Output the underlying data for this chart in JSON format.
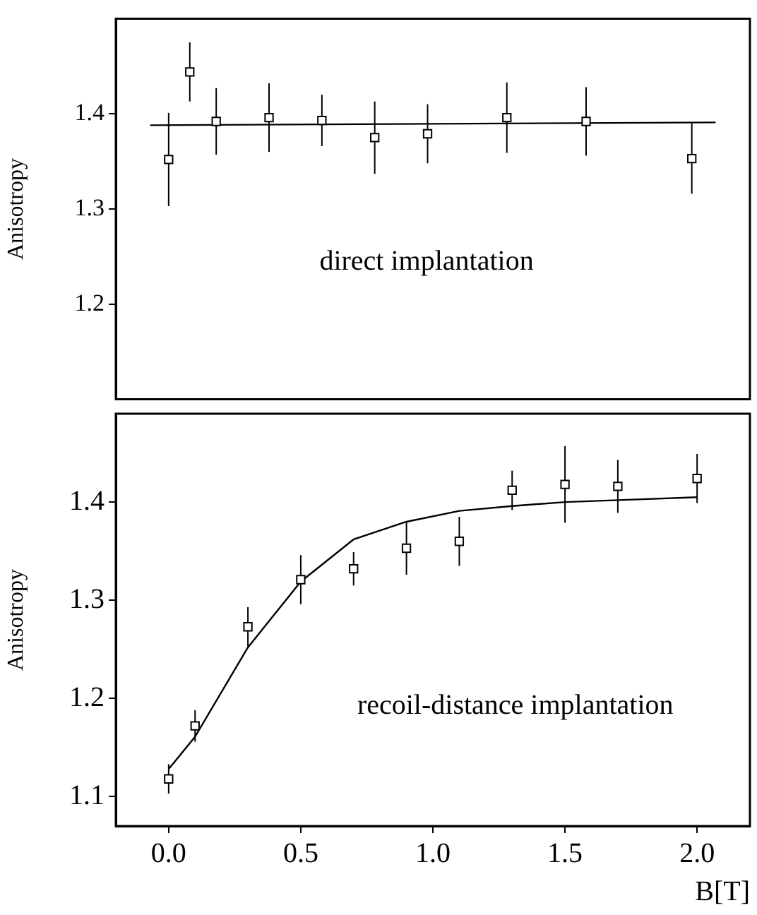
{
  "chart_data": [
    {
      "type": "scatter",
      "ylabel": "Anisotropy",
      "xlim": [
        -0.2,
        2.2
      ],
      "ylim": [
        1.1,
        1.5
      ],
      "yticks": [
        1.2,
        1.3,
        1.4
      ],
      "tick_labels": "y",
      "marker": "square",
      "annotations": [
        "direct implantation"
      ],
      "series": [
        {
          "color": "#000000",
          "x": [
            0.0,
            0.08,
            0.18,
            0.38,
            0.58,
            0.78,
            0.98,
            1.28,
            1.58,
            1.98
          ],
          "values": [
            1.352,
            1.444,
            1.392,
            1.396,
            1.393,
            1.375,
            1.379,
            1.396,
            1.392,
            1.353
          ],
          "errors": [
            0.049,
            0.031,
            0.035,
            0.036,
            0.027,
            0.038,
            0.031,
            0.037,
            0.036,
            0.037
          ]
        },
        {
          "type": "line",
          "color": "#000000",
          "marker": "none",
          "x": [
            -0.07,
            2.07
          ],
          "values": [
            1.388,
            1.391
          ]
        }
      ]
    },
    {
      "type": "scatter",
      "ylabel": "Anisotropy",
      "xlabel": "B[T]",
      "xlim": [
        -0.2,
        2.2
      ],
      "xticks": [
        {
          "value": 0,
          "label": "0.0"
        },
        0.5,
        {
          "value": 1,
          "label": "1.0"
        },
        1.5,
        {
          "value": 2,
          "label": "2.0"
        }
      ],
      "ylim": [
        1.07,
        1.49
      ],
      "yticks": [
        1.1,
        1.2,
        1.3,
        1.4
      ],
      "marker": "square",
      "annotations": [
        "recoil-distance implantation"
      ],
      "series": [
        {
          "color": "#000000",
          "x": [
            0,
            0.1,
            0.3,
            0.5,
            0.7,
            0.9,
            1.1,
            1.3,
            1.5,
            1.7,
            2.0
          ],
          "values": [
            1.118,
            1.172,
            1.273,
            1.321,
            1.332,
            1.353,
            1.36,
            1.412,
            1.418,
            1.416,
            1.424
          ],
          "errors": [
            0.015,
            0.016,
            0.02,
            0.025,
            0.017,
            0.027,
            0.025,
            0.02,
            0.039,
            0.027,
            0.025
          ]
        },
        {
          "type": "line",
          "color": "#000000",
          "marker": "none",
          "x": [
            0,
            0.1,
            0.3,
            0.5,
            0.7,
            0.9,
            1.1,
            1.3,
            1.5,
            1.7,
            2.0
          ],
          "values": [
            1.128,
            1.161,
            1.252,
            1.319,
            1.362,
            1.38,
            1.391,
            1.396,
            1.4,
            1.402,
            1.405
          ]
        }
      ]
    }
  ]
}
